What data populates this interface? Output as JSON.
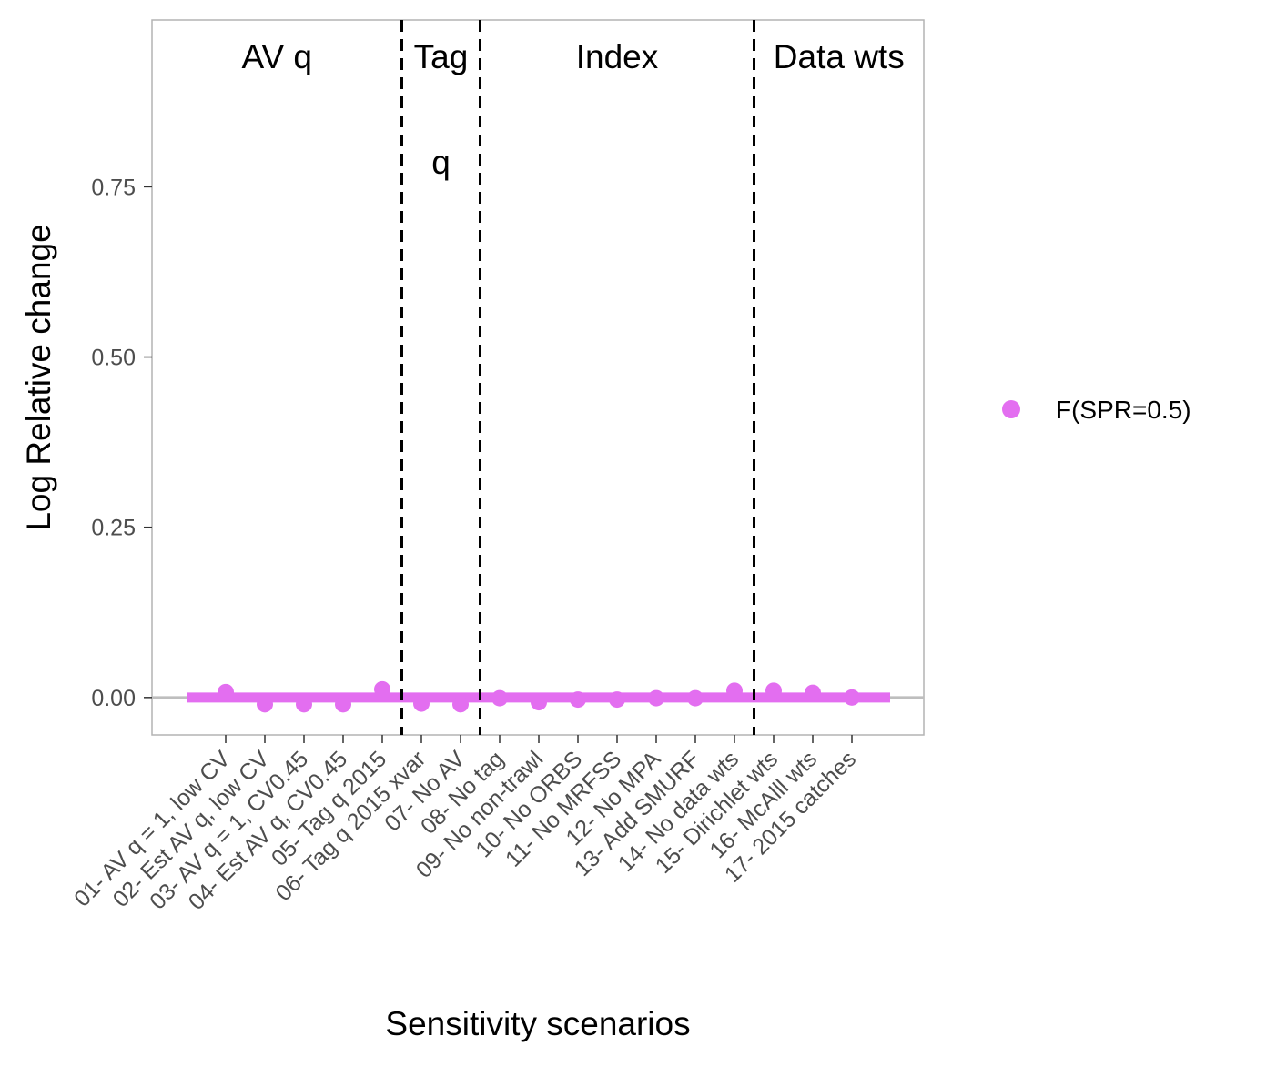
{
  "chart_data": {
    "type": "scatter",
    "xlabel": "Sensitivity scenarios",
    "ylabel": "Log Relative change",
    "ylim": [
      -0.055,
      0.995
    ],
    "yticks": [
      "0.00",
      "0.25",
      "0.50",
      "0.75"
    ],
    "ytick_values": [
      0,
      0.25,
      0.5,
      0.75
    ],
    "categories": [
      "01- AV q = 1, low CV",
      "02- Est AV q, low CV",
      "03- AV q = 1, CV0.45",
      "04- Est AV q, CV0.45",
      "05- Tag q 2015",
      "06- Tag q 2015 xvar",
      "07- No AV",
      "08- No tag",
      "09- No non-trawl",
      "10- No ORBS",
      "11- No MRFSS",
      "12- No MPA",
      "13- Add SMURF",
      "14- No data wts",
      "15- Dirichlet wts",
      "16- McAlll wts",
      "17- 2015 catches"
    ],
    "series": [
      {
        "name": "F(SPR=0.5)",
        "color": "#e36ef0",
        "values": [
          0.008,
          -0.01,
          -0.01,
          -0.01,
          0.012,
          -0.009,
          -0.01,
          -0.001,
          -0.007,
          -0.003,
          -0.003,
          -0.001,
          -0.001,
          0.01,
          0.01,
          0.007,
          0.0
        ]
      }
    ],
    "reference_line": {
      "y": 0,
      "color": "#bebebe"
    },
    "band": {
      "y": 0,
      "color": "#e36ef0"
    },
    "dividers_after_index": [
      4.5,
      6.5,
      13.5
    ],
    "groups": [
      {
        "lines": [
          "AV q"
        ]
      },
      {
        "lines": [
          "Tag",
          "q"
        ]
      },
      {
        "lines": [
          "Index"
        ]
      },
      {
        "lines": [
          "Data wts"
        ]
      }
    ],
    "legend_position": "right",
    "grid": false
  }
}
